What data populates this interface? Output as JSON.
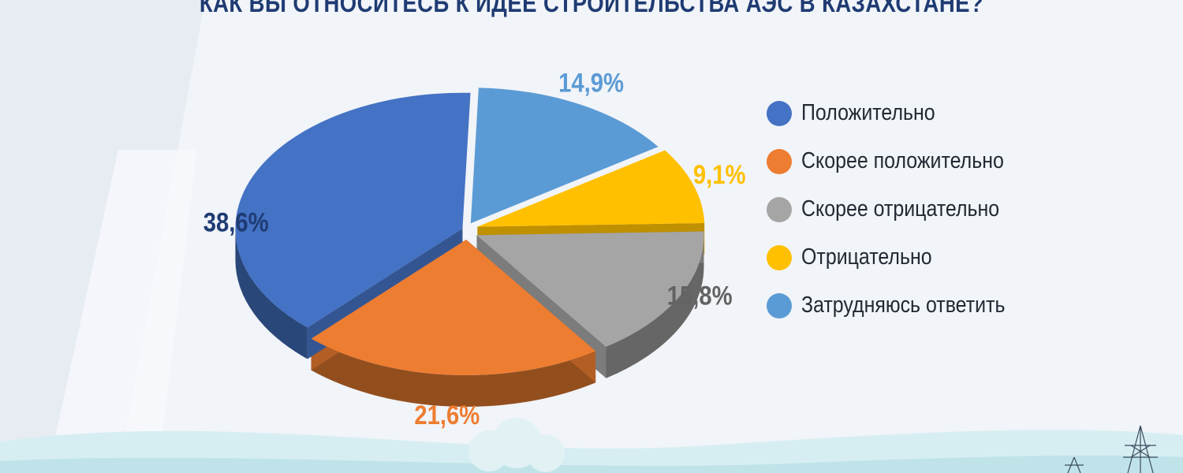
{
  "chart_data": {
    "type": "pie",
    "title": "КАК ВЫ ОТНОСИТЕСЬ К ИДЕЕ СТРОИТЕЛЬСТВА АЭС В КАЗАХСТАНЕ?",
    "slices": [
      {
        "name": "Положительно",
        "value": 38.6,
        "label": "38,6%",
        "color": "#4472c4"
      },
      {
        "name": "Скорее положительно",
        "value": 21.6,
        "label": "21,6%",
        "color": "#ed7d31"
      },
      {
        "name": "Скорее отрицательно",
        "value": 15.8,
        "label": "15,8%",
        "color": "#a5a5a5"
      },
      {
        "name": "Отрицательно",
        "value": 9.1,
        "label": "9,1%",
        "color": "#ffc000"
      },
      {
        "name": "Затрудняюсь ответить",
        "value": 14.9,
        "label": "14,9%",
        "color": "#5b9bd5"
      }
    ],
    "style": "3d-exploded-pie",
    "legend_position": "right"
  },
  "colors": {
    "title": "#1f3b73",
    "positive_label": "#1f3b73",
    "background": "#f1f4f8"
  }
}
